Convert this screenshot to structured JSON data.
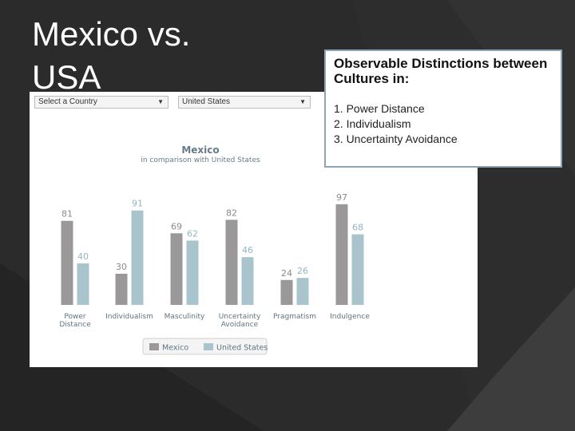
{
  "slide": {
    "title": "Mexico vs. USA",
    "colors": {
      "background": "#2b2b2b",
      "shape_dark": "#1f1f1f",
      "shape_mid": "#3a3a3a"
    }
  },
  "controls": {
    "country_select": "Select a Country",
    "compare_select": "United States"
  },
  "info_box": {
    "title": "Observable Distinctions between Cultures in:",
    "items": [
      "1. Power Distance",
      "2. Individualism",
      "3. Uncertainty Avoidance"
    ]
  },
  "chart_data": {
    "type": "bar",
    "title": "Mexico",
    "subtitle": "in comparison with United States",
    "categories": [
      "Power Distance",
      "Individualism",
      "Masculinity",
      "Uncertainty Avoidance",
      "Pragmatism",
      "Indulgence"
    ],
    "category_lines": [
      [
        "Power",
        "Distance"
      ],
      [
        "Individualism"
      ],
      [
        "Masculinity"
      ],
      [
        "Uncertainty",
        "Avoidance"
      ],
      [
        "Pragmatism"
      ],
      [
        "Indulgence"
      ]
    ],
    "series": [
      {
        "name": "Mexico",
        "values": [
          81,
          30,
          69,
          82,
          24,
          97
        ],
        "color": "#9a9899"
      },
      {
        "name": "United States",
        "values": [
          40,
          91,
          62,
          46,
          26,
          68
        ],
        "color": "#a9c4cc"
      }
    ],
    "ylim": [
      0,
      100
    ],
    "legend": "bottom-center",
    "grid": false,
    "label_colors": {
      "Mexico": "#8a8a8a",
      "United States": "#93b5bf"
    }
  }
}
